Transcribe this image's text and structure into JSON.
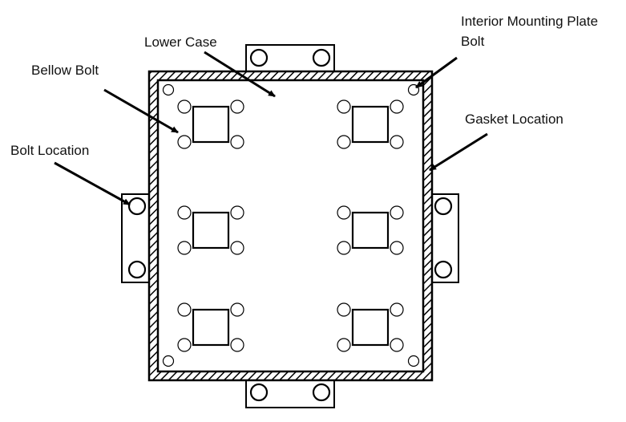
{
  "diagram": {
    "labels": {
      "lower_case": "Lower Case",
      "bellow_bolt": "Bellow Bolt",
      "interior_plate_bolt_line1": "Interior Mounting Plate",
      "interior_plate_bolt_line2": "Bolt",
      "gasket_location": "Gasket Location",
      "bolt_location": "Bolt Location"
    },
    "colors": {
      "stroke": "#000000",
      "background": "#ffffff"
    }
  }
}
